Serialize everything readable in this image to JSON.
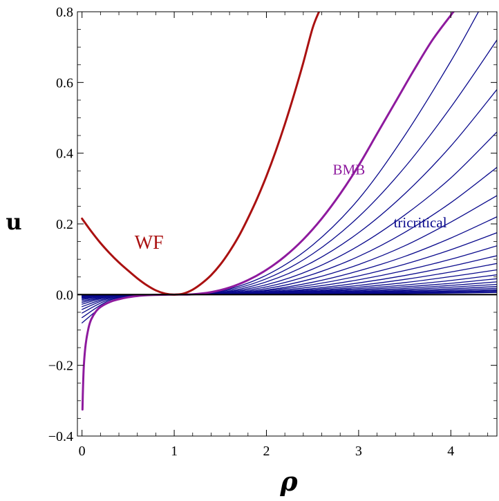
{
  "chart_data": {
    "type": "line",
    "xlabel": "ρ",
    "ylabel": "u",
    "xlim": [
      -0.05,
      4.5
    ],
    "ylim": [
      -0.4,
      0.8
    ],
    "x_ticks": [
      "0",
      "1",
      "2",
      "3",
      "4"
    ],
    "y_ticks": [
      "−0.4",
      "−0.2",
      "0.0",
      "0.2",
      "0.4",
      "0.6",
      "0.8"
    ],
    "grid": false,
    "colors": {
      "wf": "#aa1111",
      "bmb": "#8e1a9e",
      "tricritical": "#0a0a8c",
      "zero_line": "#000000"
    },
    "annotations": [
      {
        "text": "WF",
        "x": 0.57,
        "y": 0.13,
        "color": "#aa1111"
      },
      {
        "text": "BMB",
        "x": 2.72,
        "y": 0.34,
        "color": "#8e1a9e"
      },
      {
        "text": "tricritical",
        "x": 3.38,
        "y": 0.19,
        "color": "#0a0a8c"
      }
    ],
    "series": [
      {
        "name": "WF",
        "role": "wf",
        "x": [
          0,
          0.1,
          0.2,
          0.3,
          0.4,
          0.5,
          0.6,
          0.7,
          0.8,
          0.9,
          1.0,
          1.1,
          1.2,
          1.3,
          1.4,
          1.5,
          1.6,
          1.7,
          1.8,
          1.9,
          2.0,
          2.1,
          2.2,
          2.3,
          2.4,
          2.5,
          2.57
        ],
        "y": [
          0.215,
          0.179,
          0.146,
          0.117,
          0.091,
          0.068,
          0.046,
          0.027,
          0.012,
          0.003,
          0.0,
          0.003,
          0.014,
          0.032,
          0.055,
          0.085,
          0.122,
          0.165,
          0.216,
          0.272,
          0.335,
          0.405,
          0.482,
          0.566,
          0.656,
          0.753,
          0.8
        ]
      },
      {
        "name": "BMB",
        "role": "bmb",
        "x": [
          0.005,
          0.01,
          0.02,
          0.04,
          0.07,
          0.1,
          0.15,
          0.2,
          0.3,
          0.4,
          0.5,
          0.6,
          0.7,
          0.8,
          0.9,
          1.0,
          1.2,
          1.4,
          1.6,
          1.8,
          2.0,
          2.2,
          2.4,
          2.6,
          2.8,
          3.0,
          3.2,
          3.4,
          3.6,
          3.8,
          4.0,
          4.03
        ],
        "y": [
          -0.325,
          -0.27,
          -0.2,
          -0.14,
          -0.095,
          -0.07,
          -0.048,
          -0.035,
          -0.021,
          -0.013,
          -0.0075,
          -0.004,
          -0.0019,
          -0.0008,
          -0.0002,
          0.0,
          0.001,
          0.007,
          0.02,
          0.041,
          0.07,
          0.108,
          0.156,
          0.215,
          0.285,
          0.365,
          0.455,
          0.545,
          0.635,
          0.72,
          0.79,
          0.8
        ]
      },
      {
        "role": "tricritical",
        "x": [
          0,
          0.3,
          0.6,
          1.0,
          1.5,
          2.0,
          2.5,
          3.0,
          3.5,
          4.0,
          4.3
        ],
        "y": [
          -0.08,
          -0.02,
          -0.004,
          0.0,
          0.01,
          0.055,
          0.14,
          0.27,
          0.45,
          0.66,
          0.8
        ]
      },
      {
        "role": "tricritical",
        "x": [
          0,
          0.3,
          0.6,
          1.0,
          1.5,
          2.0,
          2.5,
          3.0,
          3.5,
          4.0,
          4.5
        ],
        "y": [
          -0.065,
          -0.016,
          -0.003,
          0.0,
          0.008,
          0.045,
          0.115,
          0.22,
          0.36,
          0.53,
          0.72
        ]
      },
      {
        "role": "tricritical",
        "x": [
          0,
          0.3,
          0.6,
          1.0,
          1.5,
          2.0,
          2.5,
          3.0,
          3.5,
          4.0,
          4.5
        ],
        "y": [
          -0.052,
          -0.013,
          -0.002,
          0.0,
          0.006,
          0.036,
          0.092,
          0.175,
          0.285,
          0.42,
          0.58
        ]
      },
      {
        "role": "tricritical",
        "x": [
          0,
          0.3,
          0.6,
          1.0,
          1.5,
          2.0,
          2.5,
          3.0,
          3.5,
          4.0,
          4.5
        ],
        "y": [
          -0.042,
          -0.01,
          -0.002,
          0.0,
          0.005,
          0.028,
          0.072,
          0.138,
          0.225,
          0.33,
          0.46
        ]
      },
      {
        "role": "tricritical",
        "x": [
          0,
          0.3,
          0.6,
          1.0,
          1.5,
          2.0,
          2.5,
          3.0,
          3.5,
          4.0,
          4.5
        ],
        "y": [
          -0.034,
          -0.008,
          -0.001,
          0.0,
          0.004,
          0.022,
          0.057,
          0.108,
          0.176,
          0.26,
          0.36
        ]
      },
      {
        "role": "tricritical",
        "x": [
          0,
          0.3,
          0.6,
          1.0,
          1.5,
          2.0,
          2.5,
          3.0,
          3.5,
          4.0,
          4.5
        ],
        "y": [
          -0.027,
          -0.006,
          -0.001,
          0.0,
          0.003,
          0.017,
          0.045,
          0.085,
          0.138,
          0.205,
          0.28
        ]
      },
      {
        "role": "tricritical",
        "x": [
          0,
          0.3,
          0.6,
          1.0,
          1.5,
          2.0,
          2.5,
          3.0,
          3.5,
          4.0,
          4.5
        ],
        "y": [
          -0.022,
          -0.005,
          -0.001,
          0.0,
          0.0025,
          0.013,
          0.035,
          0.067,
          0.108,
          0.16,
          0.22
        ]
      },
      {
        "role": "tricritical",
        "x": [
          0,
          0.3,
          0.6,
          1.0,
          1.5,
          2.0,
          2.5,
          3.0,
          3.5,
          4.0,
          4.5
        ],
        "y": [
          -0.018,
          -0.004,
          -0.0007,
          0.0,
          0.002,
          0.011,
          0.028,
          0.053,
          0.086,
          0.127,
          0.175
        ]
      },
      {
        "role": "tricritical",
        "x": [
          0,
          0.3,
          0.6,
          1.0,
          1.5,
          2.0,
          2.5,
          3.0,
          3.5,
          4.0,
          4.5
        ],
        "y": [
          -0.014,
          -0.003,
          -0.0005,
          0.0,
          0.0015,
          0.0085,
          0.022,
          0.042,
          0.068,
          0.1,
          0.138
        ]
      },
      {
        "role": "tricritical",
        "x": [
          0,
          0.3,
          0.6,
          1.0,
          1.5,
          2.0,
          2.5,
          3.0,
          3.5,
          4.0,
          4.5
        ],
        "y": [
          -0.011,
          -0.0025,
          -0.0004,
          0.0,
          0.0012,
          0.0068,
          0.017,
          0.033,
          0.054,
          0.08,
          0.11
        ]
      },
      {
        "role": "tricritical",
        "x": [
          0,
          0.3,
          0.6,
          1.0,
          1.5,
          2.0,
          2.5,
          3.0,
          3.5,
          4.0,
          4.5
        ],
        "y": [
          -0.009,
          -0.002,
          -0.0003,
          0.0,
          0.001,
          0.0054,
          0.014,
          0.026,
          0.043,
          0.064,
          0.088
        ]
      },
      {
        "role": "tricritical",
        "x": [
          0,
          0.3,
          0.6,
          1.0,
          1.5,
          2.0,
          2.5,
          3.0,
          3.5,
          4.0,
          4.5
        ],
        "y": [
          -0.007,
          -0.0015,
          -0.0002,
          0.0,
          0.0008,
          0.0043,
          0.011,
          0.021,
          0.034,
          0.051,
          0.07
        ]
      },
      {
        "role": "tricritical",
        "x": [
          0,
          0.3,
          0.6,
          1.0,
          1.5,
          2.0,
          2.5,
          3.0,
          3.5,
          4.0,
          4.5
        ],
        "y": [
          -0.0055,
          -0.0012,
          -0.0002,
          0.0,
          0.0006,
          0.0034,
          0.0088,
          0.017,
          0.027,
          0.04,
          0.056
        ]
      },
      {
        "role": "tricritical",
        "x": [
          0,
          0.3,
          0.6,
          1.0,
          1.5,
          2.0,
          2.5,
          3.0,
          3.5,
          4.0,
          4.5
        ],
        "y": [
          -0.0045,
          -0.001,
          -0.0001,
          0.0,
          0.0005,
          0.0027,
          0.007,
          0.0135,
          0.022,
          0.032,
          0.045
        ]
      },
      {
        "role": "tricritical",
        "x": [
          0,
          0.3,
          0.6,
          1.0,
          1.5,
          2.0,
          2.5,
          3.0,
          3.5,
          4.0,
          4.5
        ],
        "y": [
          -0.0035,
          -0.0008,
          -0.0001,
          0.0,
          0.0004,
          0.0021,
          0.0055,
          0.0107,
          0.0175,
          0.026,
          0.036
        ]
      },
      {
        "role": "tricritical",
        "x": [
          0,
          0.3,
          0.6,
          1.0,
          1.5,
          2.0,
          2.5,
          3.0,
          3.5,
          4.0,
          4.5
        ],
        "y": [
          -0.0028,
          -0.0006,
          -0.0001,
          0.0,
          0.0003,
          0.0017,
          0.0044,
          0.0085,
          0.014,
          0.021,
          0.029
        ]
      },
      {
        "role": "tricritical",
        "x": [
          0,
          0.3,
          0.6,
          1.0,
          1.5,
          2.0,
          2.5,
          3.0,
          3.5,
          4.0,
          4.5
        ],
        "y": [
          -0.0022,
          -0.0005,
          -0.0001,
          0.0,
          0.0002,
          0.0013,
          0.0035,
          0.0068,
          0.011,
          0.0165,
          0.023
        ]
      },
      {
        "role": "tricritical",
        "x": [
          0,
          0.3,
          0.6,
          1.0,
          1.5,
          2.0,
          2.5,
          3.0,
          3.5,
          4.0,
          4.5
        ],
        "y": [
          -0.0017,
          -0.0004,
          -0.0001,
          0.0,
          0.0002,
          0.001,
          0.0027,
          0.0053,
          0.0087,
          0.013,
          0.018
        ]
      },
      {
        "role": "tricritical",
        "x": [
          0,
          0.3,
          0.6,
          1.0,
          1.5,
          2.0,
          2.5,
          3.0,
          3.5,
          4.0,
          4.5
        ],
        "y": [
          -0.0013,
          -0.0003,
          0.0,
          0.0,
          0.0001,
          0.0008,
          0.0021,
          0.0041,
          0.0068,
          0.01,
          0.014
        ]
      },
      {
        "role": "tricritical",
        "x": [
          0,
          0.3,
          0.6,
          1.0,
          1.5,
          2.0,
          2.5,
          3.0,
          3.5,
          4.0,
          4.5
        ],
        "y": [
          -0.001,
          -0.0002,
          0.0,
          0.0,
          0.0001,
          0.0006,
          0.0016,
          0.0032,
          0.0053,
          0.0078,
          0.011
        ]
      },
      {
        "role": "tricritical",
        "x": [
          0,
          0.3,
          0.6,
          1.0,
          1.5,
          2.0,
          2.5,
          3.0,
          3.5,
          4.0,
          4.5
        ],
        "y": [
          -0.0007,
          -0.0001,
          0.0,
          0.0,
          0.0001,
          0.0004,
          0.0012,
          0.0024,
          0.004,
          0.006,
          0.0083
        ]
      },
      {
        "role": "tricritical",
        "x": [
          0,
          0.3,
          0.6,
          1.0,
          1.5,
          2.0,
          2.5,
          3.0,
          3.5,
          4.0,
          4.5
        ],
        "y": [
          -0.0005,
          -0.0001,
          0.0,
          0.0,
          0.0,
          0.0003,
          0.0008,
          0.0017,
          0.0029,
          0.0043,
          0.006
        ]
      }
    ]
  }
}
